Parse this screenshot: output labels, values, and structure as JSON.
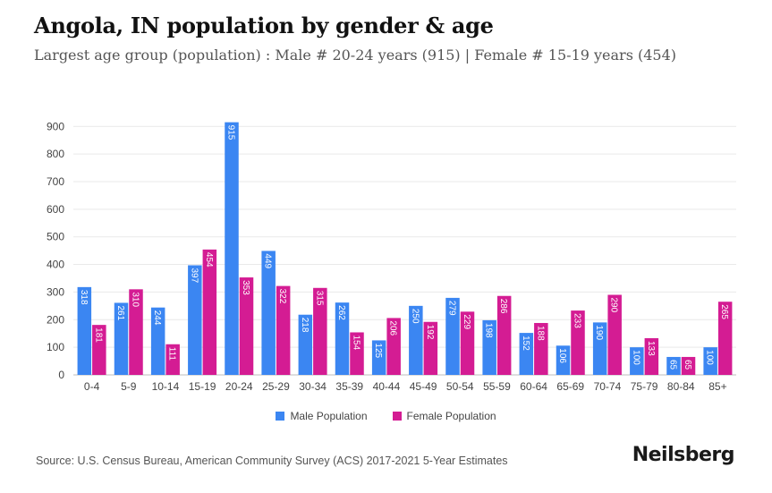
{
  "title": "Angola, IN population by gender & age",
  "subtitle": "Largest age group (population) : Male # 20-24 years (915) | Female # 15-19 years (454)",
  "source": "Source: U.S. Census Bureau, American Community Survey (ACS) 2017-2021 5-Year Estimates",
  "brand": "Neilsberg",
  "colors": {
    "male": "#3b86f2",
    "female": "#d41c93"
  },
  "chart_data": {
    "type": "bar",
    "categories": [
      "0-4",
      "5-9",
      "10-14",
      "15-19",
      "20-24",
      "25-29",
      "30-34",
      "35-39",
      "40-44",
      "45-49",
      "50-54",
      "55-59",
      "60-64",
      "65-69",
      "70-74",
      "75-79",
      "80-84",
      "85+"
    ],
    "series": [
      {
        "name": "Male Population",
        "values": [
          318,
          261,
          244,
          397,
          915,
          449,
          218,
          262,
          125,
          250,
          279,
          198,
          152,
          106,
          190,
          100,
          65,
          100
        ]
      },
      {
        "name": "Female Population",
        "values": [
          181,
          310,
          111,
          454,
          353,
          322,
          315,
          154,
          206,
          192,
          229,
          286,
          188,
          233,
          290,
          133,
          65,
          265
        ]
      }
    ],
    "ylim": [
      0,
      930
    ],
    "yticks": [
      0,
      100,
      200,
      300,
      400,
      500,
      600,
      700,
      800,
      900
    ],
    "grid": true,
    "legend": "bottom-center",
    "value_labels": "inside-top-rotated"
  }
}
